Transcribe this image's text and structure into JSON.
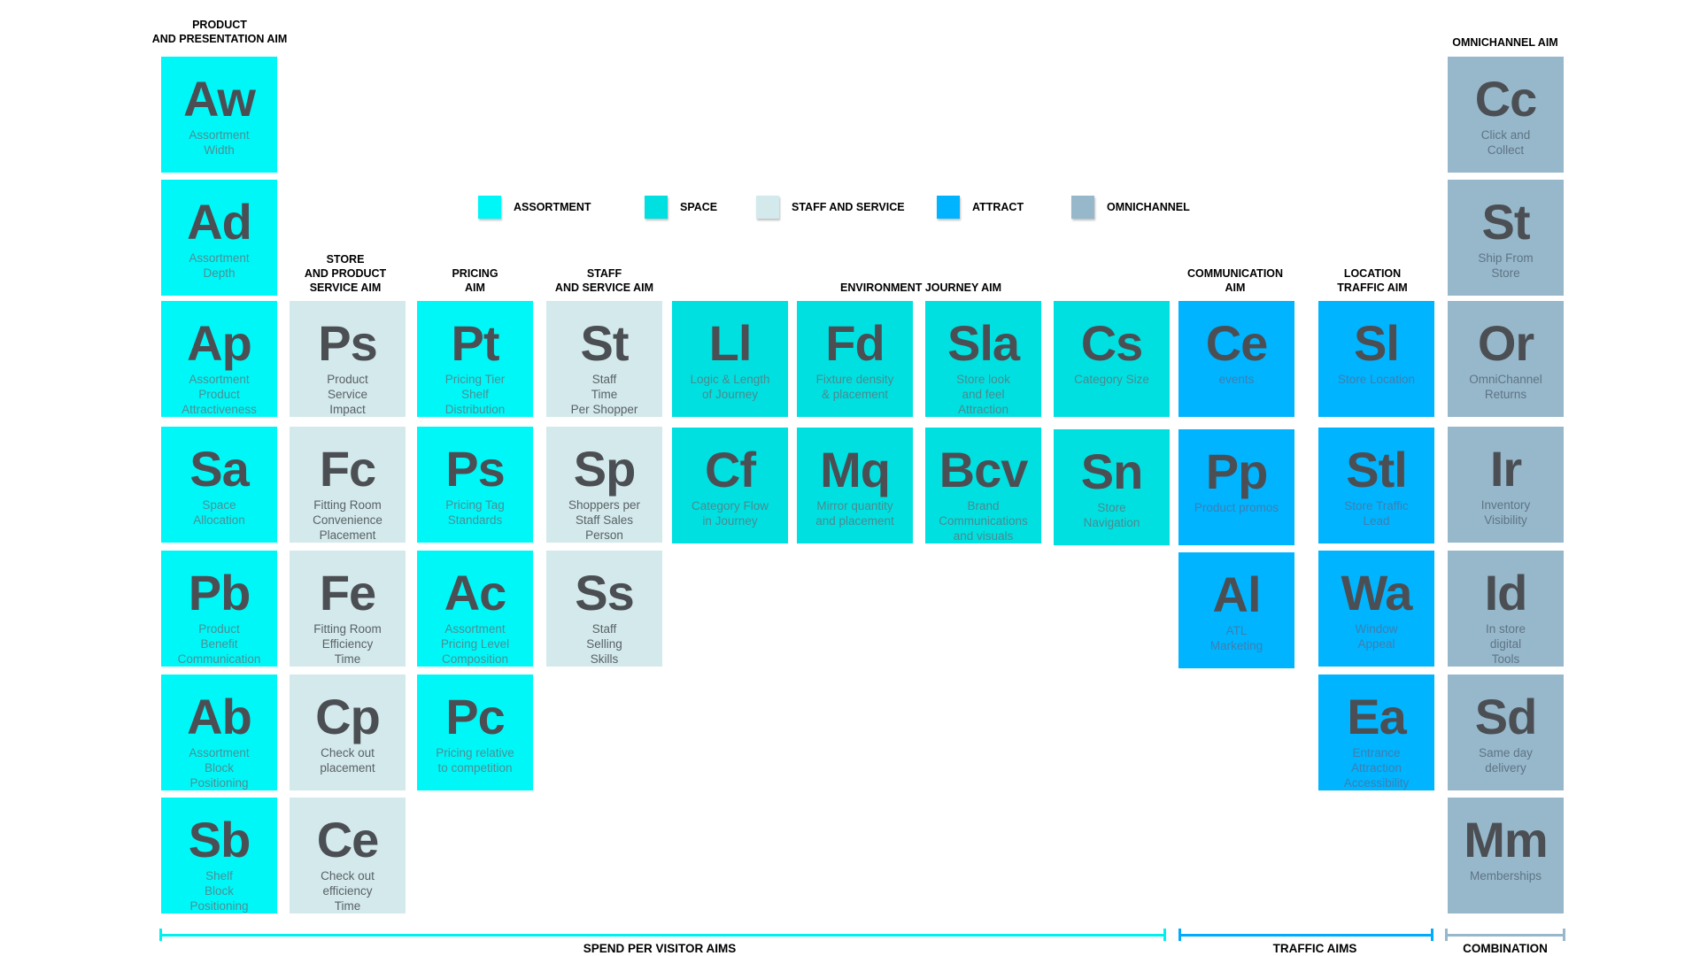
{
  "colors": {
    "assortment": "#00f7f7",
    "space": "#00e0e0",
    "staff_and_service": "#d3e9eb",
    "attract": "#00b4ff",
    "omnichannel": "#97b8cb",
    "symbol_text": "#4b4f54"
  },
  "legend": [
    {
      "label": "ASSORTMENT",
      "category": "assortment"
    },
    {
      "label": "SPACE",
      "category": "space"
    },
    {
      "label": "STAFF AND SERVICE",
      "category": "staff_and_service"
    },
    {
      "label": "ATTRACT",
      "category": "attract"
    },
    {
      "label": "OMNICHANNEL",
      "category": "omnichannel"
    }
  ],
  "headers": {
    "product": "PRODUCT\nAND PRESENTATION AIM",
    "store": "STORE\nAND PRODUCT\nSERVICE AIM",
    "pricing": "PRICING\nAIM",
    "staff": "STAFF\nAND SERVICE AIM",
    "environment": "ENVIRONMENT JOURNEY AIM",
    "communication": "COMMUNICATION\nAIM",
    "location": "LOCATION\nTRAFFIC AIM",
    "omnichannel": "OMNICHANNEL AIM"
  },
  "columns": {
    "product": [
      {
        "symbol": "Aw",
        "label": "Assortment\nWidth"
      },
      {
        "symbol": "Ad",
        "label": "Assortment\nDepth"
      },
      {
        "symbol": "Ap",
        "label": "Assortment\nProduct\nAttractiveness"
      },
      {
        "symbol": "Sa",
        "label": "Space\nAllocation"
      },
      {
        "symbol": "Pb",
        "label": "Product\nBenefit\nCommunication"
      },
      {
        "symbol": "Ab",
        "label": "Assortment\nBlock\nPositioning"
      },
      {
        "symbol": "Sb",
        "label": "Shelf\nBlock\nPositioning"
      }
    ],
    "store": [
      {
        "symbol": "Ps",
        "label": "Product\nService\nImpact"
      },
      {
        "symbol": "Fc",
        "label": "Fitting Room\nConvenience\nPlacement"
      },
      {
        "symbol": "Fe",
        "label": "Fitting Room\nEfficiency\nTime"
      },
      {
        "symbol": "Cp",
        "label": "Check out\nplacement"
      },
      {
        "symbol": "Ce",
        "label": "Check out\nefficiency\nTime"
      }
    ],
    "pricing": [
      {
        "symbol": "Pt",
        "label": "Pricing Tier\nShelf\nDistribution"
      },
      {
        "symbol": "Ps",
        "label": "Pricing Tag\nStandards"
      },
      {
        "symbol": "Ac",
        "label": "Assortment\nPricing Level\nComposition"
      },
      {
        "symbol": "Pc",
        "label": "Pricing relative\nto competition"
      }
    ],
    "staff": [
      {
        "symbol": "St",
        "label": "Staff\nTime\nPer Shopper"
      },
      {
        "symbol": "Sp",
        "label": "Shoppers per\nStaff Sales\nPerson"
      },
      {
        "symbol": "Ss",
        "label": "Staff\nSelling\nSkills"
      }
    ],
    "env1": [
      {
        "symbol": "Ll",
        "label": "Logic & Length\nof Journey"
      },
      {
        "symbol": "Cf",
        "label": "Category Flow\nin Journey"
      }
    ],
    "env2": [
      {
        "symbol": "Fd",
        "label": "Fixture density\n& placement"
      },
      {
        "symbol": "Mq",
        "label": "Mirror quantity\nand placement"
      }
    ],
    "env3": [
      {
        "symbol": "Sla",
        "label": "Store look\nand feel\nAttraction"
      },
      {
        "symbol": "Bcv",
        "label": "Brand\nCommunications\nand visuals"
      }
    ],
    "env4": [
      {
        "symbol": "Cs",
        "label": "Category Size"
      },
      {
        "symbol": "Sn",
        "label": "Store\nNavigation"
      }
    ],
    "communication": [
      {
        "symbol": "Ce",
        "label": "events"
      },
      {
        "symbol": "Pp",
        "label": "Product promos"
      },
      {
        "symbol": "Al",
        "label": "ATL\nMarketing"
      }
    ],
    "location": [
      {
        "symbol": "Sl",
        "label": "Store Location"
      },
      {
        "symbol": "Stl",
        "label": "Store Traffic\nLead"
      },
      {
        "symbol": "Wa",
        "label": "Window\nAppeal"
      },
      {
        "symbol": "Ea",
        "label": "Entrance\nAttraction\nAccessibility"
      }
    ],
    "omnichannel": [
      {
        "symbol": "Cc",
        "label": "Click and\nCollect"
      },
      {
        "symbol": "St",
        "label": "Ship From\nStore"
      },
      {
        "symbol": "Or",
        "label": "OmniChannel\nReturns"
      },
      {
        "symbol": "Ir",
        "label": "Inventory\nVisibility"
      },
      {
        "symbol": "Id",
        "label": "In store\ndigital\nTools"
      },
      {
        "symbol": "Sd",
        "label": "Same day\ndelivery"
      },
      {
        "symbol": "Mm",
        "label": "Memberships"
      }
    ]
  },
  "brackets": {
    "spend": "SPEND PER VISITOR AIMS",
    "traffic": "TRAFFIC AIMS",
    "combination": "COMBINATION"
  }
}
